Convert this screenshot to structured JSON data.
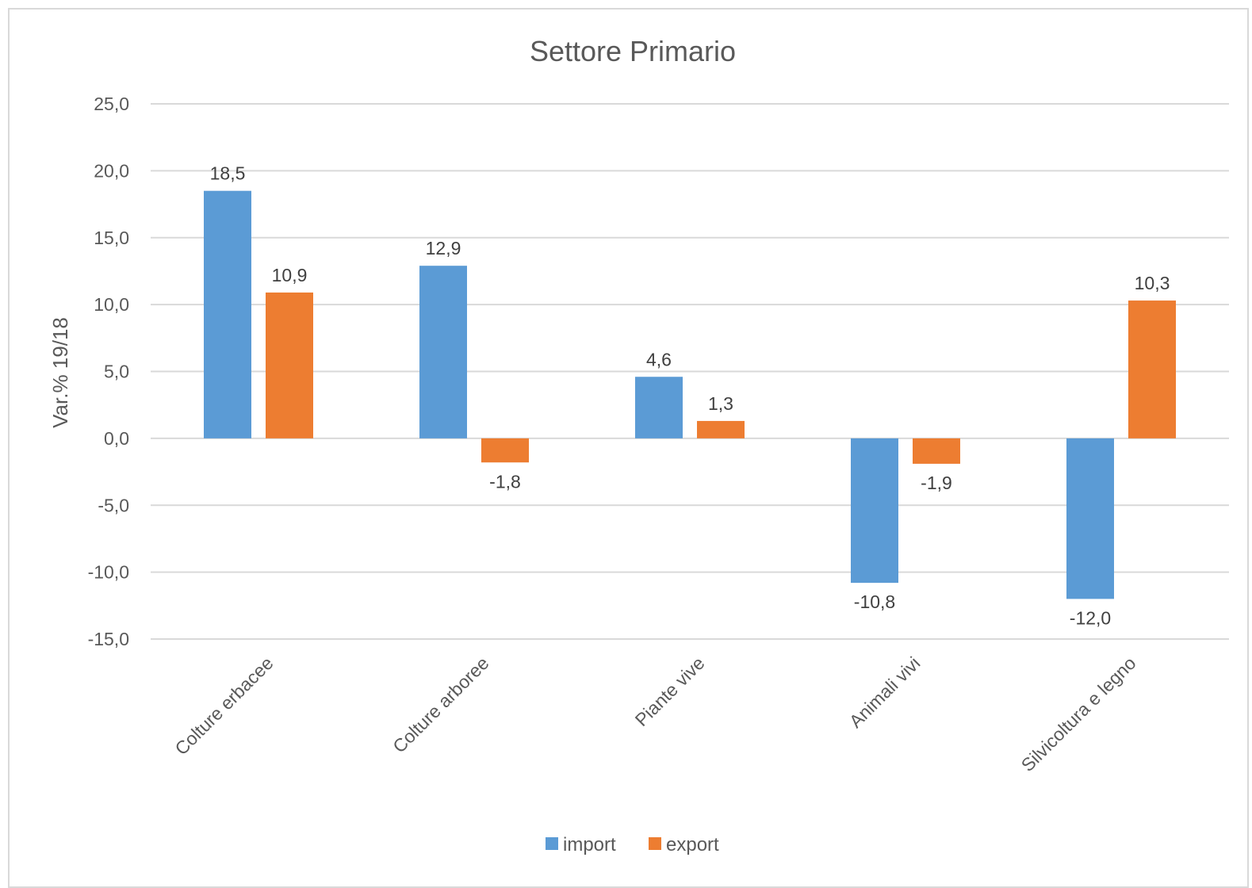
{
  "chart_data": {
    "type": "bar",
    "title": "Settore Primario",
    "xlabel": "",
    "ylabel": "Var.% 19/18",
    "ylim": [
      -15,
      25
    ],
    "y_ticks": [
      "25,0",
      "20,0",
      "15,0",
      "10,0",
      "5,0",
      "0,0",
      "-5,0",
      "-10,0",
      "-15,0"
    ],
    "y_tick_values": [
      25,
      20,
      15,
      10,
      5,
      0,
      -5,
      -10,
      -15
    ],
    "categories": [
      "Colture erbacee",
      "Colture arboree",
      "Piante vive",
      "Animali vivi",
      "Silvicoltura e legno"
    ],
    "series": [
      {
        "name": "import",
        "color": "#5b9bd5",
        "values": [
          18.5,
          12.9,
          4.6,
          -10.8,
          -12.0
        ],
        "labels": [
          "18,5",
          "12,9",
          "4,6",
          "-10,8",
          "-12,0"
        ]
      },
      {
        "name": "export",
        "color": "#ed7d31",
        "values": [
          10.9,
          -1.8,
          1.3,
          -1.9,
          10.3
        ],
        "labels": [
          "10,9",
          "-1,8",
          "1,3",
          "-1,9",
          "10,3"
        ]
      }
    ],
    "grid": true,
    "legend_position": "bottom"
  }
}
